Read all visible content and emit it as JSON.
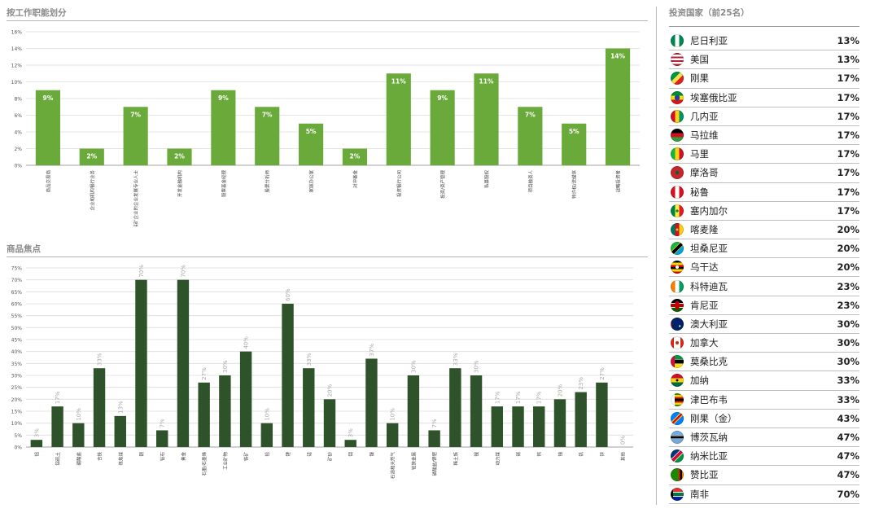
{
  "titles": {
    "function": "按工作职能划分",
    "commodity": "商品焦点",
    "countries": "投资国家（前25名）"
  },
  "chart_data": [
    {
      "type": "bar",
      "title": "按工作职能划分",
      "categories": [
        "商品交易商",
        "企业和机构银行业务",
        "采矿企业的企业发展专业人士",
        "开发金融机构",
        "股票基金经理",
        "股票分析师",
        "家庭办公室",
        "对冲基金",
        "投资银行公司",
        "投资/资产管理",
        "私募股权",
        "项目融资人",
        "特许权/流媒体",
        "战略投资者"
      ],
      "values": [
        9,
        2,
        7,
        2,
        9,
        7,
        5,
        2,
        11,
        9,
        11,
        7,
        5,
        14
      ],
      "labels": [
        "9%",
        "2%",
        "7%",
        "2%",
        "9%",
        "7%",
        "5%",
        "2%",
        "11%",
        "9%",
        "11%",
        "7%",
        "5%",
        "14%"
      ],
      "ylim": [
        0,
        16
      ],
      "yticks": [
        "0%",
        "2%",
        "4%",
        "6%",
        "8%",
        "10%",
        "12%",
        "14%",
        "16%"
      ],
      "color": "#6aaa3b"
    },
    {
      "type": "bar",
      "title": "商品焦点",
      "categories": [
        "铝",
        "铝矾土",
        "硼酸盐",
        "合铁",
        "炼焦煤",
        "铜",
        "钻石",
        "黄金",
        "石墨/石墨烯",
        "工业矿物",
        "铁矿",
        "铅",
        "锂",
        "锰",
        "矿砂",
        "钼",
        "镍",
        "石油和天然气",
        "铂族金属",
        "磷酸盐/钾肥",
        "稀土族",
        "银",
        "动力煤",
        "锡",
        "钨",
        "铀",
        "钒",
        "锌",
        "其他"
      ],
      "values": [
        3,
        17,
        10,
        33,
        13,
        70,
        7,
        70,
        27,
        30,
        40,
        10,
        60,
        33,
        20,
        3,
        37,
        10,
        30,
        7,
        33,
        30,
        17,
        17,
        17,
        20,
        23,
        27,
        0
      ],
      "labels": [
        "3%",
        "17%",
        "10%",
        "33%",
        "13%",
        "70%",
        "7%",
        "70%",
        "27%",
        "30%",
        "40%",
        "10%",
        "60%",
        "33%",
        "20%",
        "3%",
        "37%",
        "10%",
        "30%",
        "7%",
        "33%",
        "30%",
        "17%",
        "17%",
        "17%",
        "20%",
        "23%",
        "27%",
        "0%"
      ],
      "ylim": [
        0,
        75
      ],
      "yticks": [
        "0%",
        "5%",
        "10%",
        "15%",
        "20%",
        "25%",
        "30%",
        "35%",
        "40%",
        "45%",
        "50%",
        "55%",
        "60%",
        "65%",
        "70%",
        "75%"
      ],
      "color": "#2e5229"
    }
  ],
  "countries": [
    {
      "name": "尼日利亚",
      "value": "13%",
      "flag": "nigeria-flag"
    },
    {
      "name": "美国",
      "value": "13%",
      "flag": "usa-flag"
    },
    {
      "name": "刚果",
      "value": "17%",
      "flag": "congo-flag"
    },
    {
      "name": "埃塞俄比亚",
      "value": "17%",
      "flag": "ethiopia-flag"
    },
    {
      "name": "几内亚",
      "value": "17%",
      "flag": "guinea-flag"
    },
    {
      "name": "马拉维",
      "value": "17%",
      "flag": "malawi-flag"
    },
    {
      "name": "马里",
      "value": "17%",
      "flag": "mali-flag"
    },
    {
      "name": "摩洛哥",
      "value": "17%",
      "flag": "morocco-flag"
    },
    {
      "name": "秘鲁",
      "value": "17%",
      "flag": "peru-flag"
    },
    {
      "name": "塞内加尔",
      "value": "17%",
      "flag": "senegal-flag"
    },
    {
      "name": "喀麦隆",
      "value": "20%",
      "flag": "cameroon-flag"
    },
    {
      "name": "坦桑尼亚",
      "value": "20%",
      "flag": "tanzania-flag"
    },
    {
      "name": "乌干达",
      "value": "20%",
      "flag": "uganda-flag"
    },
    {
      "name": "科特迪瓦",
      "value": "23%",
      "flag": "ivory-coast-flag"
    },
    {
      "name": "肯尼亚",
      "value": "23%",
      "flag": "kenya-flag"
    },
    {
      "name": "澳大利亚",
      "value": "30%",
      "flag": "australia-flag"
    },
    {
      "name": "加拿大",
      "value": "30%",
      "flag": "canada-flag"
    },
    {
      "name": "莫桑比克",
      "value": "30%",
      "flag": "mozambique-flag"
    },
    {
      "name": "加纳",
      "value": "33%",
      "flag": "ghana-flag"
    },
    {
      "name": "津巴布韦",
      "value": "33%",
      "flag": "zimbabwe-flag"
    },
    {
      "name": "刚果（金）",
      "value": "43%",
      "flag": "drc-flag"
    },
    {
      "name": "博茨瓦纳",
      "value": "47%",
      "flag": "botswana-flag"
    },
    {
      "name": "纳米比亚",
      "value": "47%",
      "flag": "namibia-flag"
    },
    {
      "name": "赞比亚",
      "value": "47%",
      "flag": "zambia-flag"
    },
    {
      "name": "南非",
      "value": "70%",
      "flag": "south-africa-flag"
    }
  ]
}
